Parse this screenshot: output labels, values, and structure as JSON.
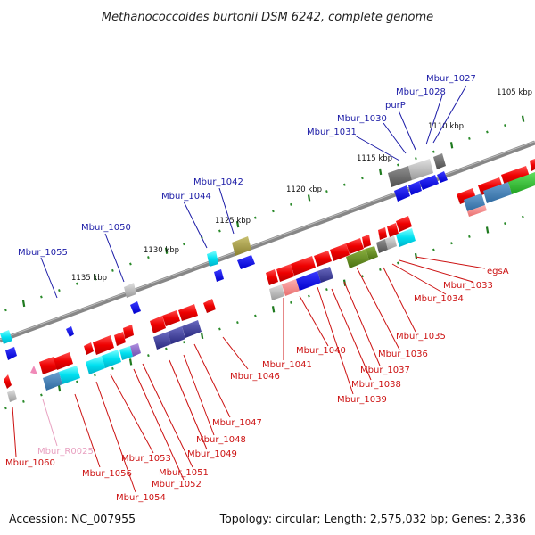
{
  "title": "Methanococcoides burtonii DSM 6242, complete genome",
  "footer": {
    "accession": "Accession: NC_007955",
    "summary": "Topology: circular; Length: 2,575,032 bp; Genes: 2,336"
  },
  "colors": {
    "backbone": "#888888",
    "ruler_dots": "#2a8a2a",
    "ruler_ticks": "#1f7a1f",
    "label_top": "#1a1aa6",
    "label_bottom": "#cc1111",
    "label_rna": "#e8a0c0"
  },
  "ticks": [
    {
      "id": "t1105",
      "label": "1105 kbp"
    },
    {
      "id": "t1110",
      "label": "1110 kbp"
    },
    {
      "id": "t1115",
      "label": "1115 kbp"
    },
    {
      "id": "t1120",
      "label": "1120 kbp"
    },
    {
      "id": "t1125",
      "label": "1125 kbp"
    },
    {
      "id": "t1130",
      "label": "1130 kbp"
    },
    {
      "id": "t1135",
      "label": "1135 kbp"
    }
  ],
  "labels_top": [
    {
      "id": "mbur1027",
      "text": "Mbur_1027"
    },
    {
      "id": "mbur1028",
      "text": "Mbur_1028"
    },
    {
      "id": "purp",
      "text": "purP"
    },
    {
      "id": "mbur1030",
      "text": "Mbur_1030"
    },
    {
      "id": "mbur1031",
      "text": "Mbur_1031"
    },
    {
      "id": "mbur1042",
      "text": "Mbur_1042"
    },
    {
      "id": "mbur1044",
      "text": "Mbur_1044"
    },
    {
      "id": "mbur1050",
      "text": "Mbur_1050"
    },
    {
      "id": "mbur1055",
      "text": "Mbur_1055"
    }
  ],
  "labels_bottom": [
    {
      "id": "egsa",
      "text": "egsA"
    },
    {
      "id": "mbur1033",
      "text": "Mbur_1033"
    },
    {
      "id": "mbur1034",
      "text": "Mbur_1034"
    },
    {
      "id": "mbur1035",
      "text": "Mbur_1035"
    },
    {
      "id": "mbur1036",
      "text": "Mbur_1036"
    },
    {
      "id": "mbur1037",
      "text": "Mbur_1037"
    },
    {
      "id": "mbur1038",
      "text": "Mbur_1038"
    },
    {
      "id": "mbur1039",
      "text": "Mbur_1039"
    },
    {
      "id": "mbur1040",
      "text": "Mbur_1040"
    },
    {
      "id": "mbur1041",
      "text": "Mbur_1041"
    },
    {
      "id": "mbur1046",
      "text": "Mbur_1046"
    },
    {
      "id": "mbur1047",
      "text": "Mbur_1047"
    },
    {
      "id": "mbur1048",
      "text": "Mbur_1048"
    },
    {
      "id": "mbur1049",
      "text": "Mbur_1049"
    },
    {
      "id": "mbur1051",
      "text": "Mbur_1051"
    },
    {
      "id": "mbur1052",
      "text": "Mbur_1052"
    },
    {
      "id": "mbur1053",
      "text": "Mbur_1053"
    },
    {
      "id": "mbur1054",
      "text": "Mbur_1054"
    },
    {
      "id": "mbur1056",
      "text": "Mbur_1056"
    },
    {
      "id": "mbur1060",
      "text": "Mbur_1060"
    },
    {
      "id": "mburr0025",
      "text": "Mbur_R0025"
    }
  ]
}
